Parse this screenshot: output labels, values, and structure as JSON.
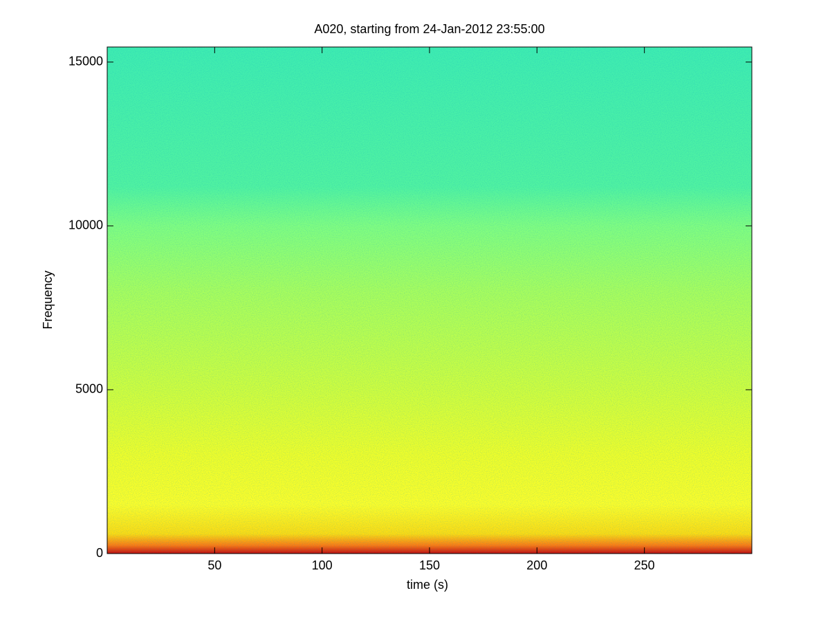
{
  "chart_data": {
    "type": "spectrogram",
    "title": "A020, starting from 24-Jan-2012 23:55:00",
    "x_label": "time (s)",
    "y_label": "Frequency",
    "xlim": [
      0,
      300
    ],
    "ylim": [
      0,
      15460
    ],
    "xticks": [
      50,
      100,
      150,
      200,
      250
    ],
    "yticks": [
      0,
      5000,
      10000,
      15000
    ],
    "color_stops": [
      {
        "frequency": 0,
        "color": "#c80c0c"
      },
      {
        "frequency": 250,
        "color": "#ff7a10"
      },
      {
        "frequency": 600,
        "color": "#ffdc10"
      },
      {
        "frequency": 1500,
        "color": "#ffff28"
      },
      {
        "frequency": 3000,
        "color": "#f2ff28"
      },
      {
        "frequency": 5000,
        "color": "#d2ff3c"
      },
      {
        "frequency": 8000,
        "color": "#aaff5c"
      },
      {
        "frequency": 10000,
        "color": "#82ff80"
      },
      {
        "frequency": 11200,
        "color": "#52f4a0"
      },
      {
        "frequency": 15460,
        "color": "#40eeb0"
      }
    ]
  }
}
